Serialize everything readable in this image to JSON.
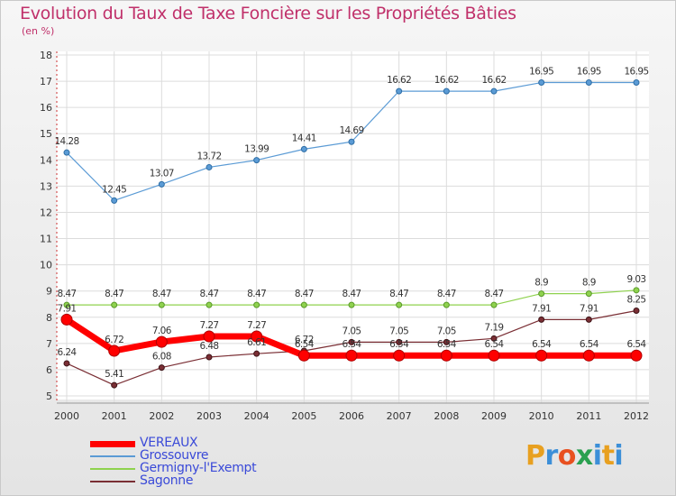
{
  "title": "Evolution du Taux de Taxe Foncière sur les Propriétés Bâties",
  "subtitle": "(en %)",
  "logo": {
    "text": "Proxiti",
    "colors": [
      "#e8a020",
      "#3c8fd8",
      "#e85020",
      "#2aa050",
      "#3c8fd8",
      "#e8a020",
      "#3c8fd8"
    ]
  },
  "chart_data": {
    "type": "line",
    "categories": [
      "2000",
      "2001",
      "2002",
      "2003",
      "2004",
      "2005",
      "2006",
      "2007",
      "2008",
      "2009",
      "2010",
      "2011",
      "2012"
    ],
    "ylim": [
      5,
      18
    ],
    "yticks": [
      5,
      6,
      7,
      8,
      9,
      10,
      11,
      12,
      13,
      14,
      15,
      16,
      17,
      18
    ],
    "grid": true,
    "series": [
      {
        "name": "VEREAUX",
        "color": "#ff0000",
        "values": [
          7.91,
          6.72,
          7.06,
          7.27,
          7.27,
          6.54,
          6.54,
          6.54,
          6.54,
          6.54,
          6.54,
          6.54,
          6.54
        ],
        "labels": [
          "7.91",
          "6.72",
          "7.06",
          "7.27",
          "7.27",
          "6.54",
          "6.54",
          "6.54",
          "6.54",
          "6.54",
          "6.54",
          "6.54",
          "6.54"
        ]
      },
      {
        "name": "Grossouvre",
        "color": "#5b9bd5",
        "values": [
          14.28,
          12.45,
          13.07,
          13.72,
          13.99,
          14.41,
          14.69,
          16.62,
          16.62,
          16.62,
          16.95,
          16.95,
          16.95
        ],
        "labels": [
          "14.28",
          "12.45",
          "13.07",
          "13.72",
          "13.99",
          "14.41",
          "14.69",
          "16.62",
          "16.62",
          "16.62",
          "16.95",
          "16.95",
          "16.95"
        ]
      },
      {
        "name": "Germigny-l'Exempt",
        "color": "#8fd24e",
        "values": [
          8.47,
          8.47,
          8.47,
          8.47,
          8.47,
          8.47,
          8.47,
          8.47,
          8.47,
          8.47,
          8.9,
          8.9,
          9.03
        ],
        "labels": [
          "8.47",
          "8.47",
          "8.47",
          "8.47",
          "8.47",
          "8.47",
          "8.47",
          "8.47",
          "8.47",
          "8.47",
          "8.9",
          "8.9",
          "9.03"
        ]
      },
      {
        "name": "Sagonne",
        "color": "#7a2e34",
        "values": [
          6.24,
          5.41,
          6.08,
          6.48,
          6.61,
          6.72,
          7.05,
          7.05,
          7.05,
          7.19,
          7.91,
          7.91,
          8.25
        ],
        "labels": [
          "6.24",
          "5.41",
          "6.08",
          "6.48",
          "6.61",
          "6.72",
          "7.05",
          "7.05",
          "7.05",
          "7.19",
          "7.91",
          "7.91",
          "8.25"
        ]
      }
    ]
  }
}
